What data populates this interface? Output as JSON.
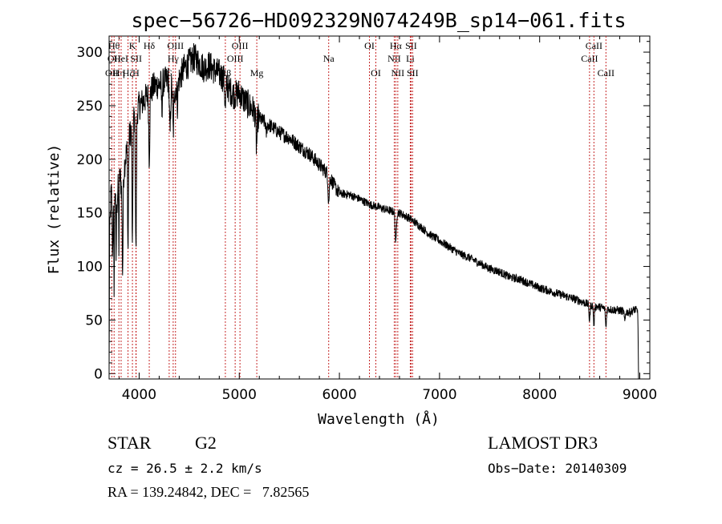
{
  "chart_data": {
    "type": "line",
    "title": "spec−56726−HD092329N074249B_sp14−061.fits",
    "xlabel": "Wavelength (Å)",
    "ylabel": "Flux (relative)",
    "xlim": [
      3700,
      9100
    ],
    "ylim": [
      -5,
      315
    ],
    "xticks": [
      4000,
      5000,
      6000,
      7000,
      8000,
      9000
    ],
    "yticks": [
      0,
      50,
      100,
      150,
      200,
      250,
      300
    ],
    "spectrum_anchors": [
      [
        3700,
        0
      ],
      [
        3705,
        125
      ],
      [
        3720,
        170
      ],
      [
        3740,
        150
      ],
      [
        3760,
        175
      ],
      [
        3780,
        160
      ],
      [
        3800,
        190
      ],
      [
        3830,
        170
      ],
      [
        3860,
        200
      ],
      [
        3900,
        220
      ],
      [
        3950,
        240
      ],
      [
        4000,
        250
      ],
      [
        4050,
        255
      ],
      [
        4100,
        262
      ],
      [
        4150,
        268
      ],
      [
        4200,
        270
      ],
      [
        4250,
        272
      ],
      [
        4300,
        275
      ],
      [
        4350,
        262
      ],
      [
        4400,
        275
      ],
      [
        4450,
        285
      ],
      [
        4500,
        290
      ],
      [
        4550,
        295
      ],
      [
        4600,
        290
      ],
      [
        4650,
        285
      ],
      [
        4700,
        288
      ],
      [
        4750,
        283
      ],
      [
        4800,
        280
      ],
      [
        4850,
        275
      ],
      [
        4900,
        265
      ],
      [
        4950,
        260
      ],
      [
        5000,
        262
      ],
      [
        5050,
        255
      ],
      [
        5100,
        250
      ],
      [
        5150,
        245
      ],
      [
        5200,
        238
      ],
      [
        5300,
        232
      ],
      [
        5400,
        225
      ],
      [
        5500,
        220
      ],
      [
        5600,
        212
      ],
      [
        5700,
        205
      ],
      [
        5800,
        195
      ],
      [
        5900,
        185
      ],
      [
        5950,
        175
      ],
      [
        6000,
        168
      ],
      [
        6100,
        167
      ],
      [
        6200,
        163
      ],
      [
        6300,
        158
      ],
      [
        6400,
        155
      ],
      [
        6500,
        152
      ],
      [
        6600,
        150
      ],
      [
        6700,
        145
      ],
      [
        6800,
        138
      ],
      [
        6900,
        130
      ],
      [
        7000,
        124
      ],
      [
        7100,
        118
      ],
      [
        7200,
        112
      ],
      [
        7300,
        108
      ],
      [
        7400,
        103
      ],
      [
        7500,
        98
      ],
      [
        7600,
        95
      ],
      [
        7700,
        90
      ],
      [
        7800,
        88
      ],
      [
        7900,
        84
      ],
      [
        8000,
        80
      ],
      [
        8100,
        77
      ],
      [
        8200,
        74
      ],
      [
        8300,
        71
      ],
      [
        8400,
        68
      ],
      [
        8500,
        64
      ],
      [
        8600,
        62
      ],
      [
        8700,
        60
      ],
      [
        8800,
        59
      ],
      [
        8900,
        57
      ],
      [
        8950,
        60
      ],
      [
        8980,
        58
      ],
      [
        8990,
        5
      ]
    ],
    "absorption_features": [
      [
        3734,
        45,
        3
      ],
      [
        3750,
        80,
        3
      ],
      [
        3770,
        60,
        3
      ],
      [
        3798,
        70,
        3
      ],
      [
        3835,
        80,
        4
      ],
      [
        3889,
        100,
        4
      ],
      [
        3933,
        120,
        4
      ],
      [
        3968,
        130,
        5
      ],
      [
        4101,
        60,
        5
      ],
      [
        4227,
        25,
        4
      ],
      [
        4308,
        50,
        6
      ],
      [
        4340,
        40,
        5
      ],
      [
        4383,
        20,
        4
      ],
      [
        4861,
        25,
        6
      ],
      [
        5172,
        30,
        6
      ],
      [
        5270,
        10,
        5
      ],
      [
        5893,
        25,
        6
      ],
      [
        6563,
        30,
        6
      ],
      [
        8498,
        15,
        5
      ],
      [
        8542,
        18,
        5
      ],
      [
        8662,
        18,
        5
      ],
      [
        8850,
        10,
        5
      ],
      [
        8990,
        50,
        3
      ]
    ],
    "noise_amplitude_blue": 14,
    "noise_amplitude_red": 4,
    "line_marks": [
      {
        "wl": 3727,
        "rows": [
          {
            "label": "OII",
            "row": 2
          }
        ]
      },
      {
        "wl": 3750,
        "rows": [
          {
            "label": "Hθ",
            "row": 0
          },
          {
            "label": "OII",
            "row": 1
          }
        ]
      },
      {
        "wl": 3798,
        "rows": [
          {
            "label": "Hη",
            "row": 2
          }
        ]
      },
      {
        "wl": 3820,
        "rows": [
          {
            "label": "HeI",
            "row": 1
          }
        ]
      },
      {
        "wl": 3889,
        "rows": [
          {
            "label": "Hζ",
            "row": 2
          }
        ]
      },
      {
        "wl": 3933,
        "rows": [
          {
            "label": "K",
            "row": 0
          }
        ]
      },
      {
        "wl": 3968,
        "rows": [
          {
            "label": "H",
            "row": 2
          }
        ]
      },
      {
        "wl": 3970,
        "rows": [
          {
            "label": "SII",
            "row": 1
          }
        ]
      },
      {
        "wl": 4101,
        "rows": [
          {
            "label": "Hδ",
            "row": 0
          }
        ]
      },
      {
        "wl": 4300,
        "rows": [
          {
            "label": "G",
            "row": 2
          }
        ]
      },
      {
        "wl": 4340,
        "rows": [
          {
            "label": "Hγ",
            "row": 1
          }
        ]
      },
      {
        "wl": 4363,
        "rows": [
          {
            "label": "OIII",
            "row": 0
          }
        ]
      },
      {
        "wl": 4861,
        "rows": [
          {
            "label": "Hβ",
            "row": 2
          }
        ]
      },
      {
        "wl": 4959,
        "rows": [
          {
            "label": "OIII",
            "row": 1
          }
        ]
      },
      {
        "wl": 5007,
        "rows": [
          {
            "label": "OIII",
            "row": 0
          }
        ]
      },
      {
        "wl": 5175,
        "rows": [
          {
            "label": "Mg",
            "row": 2
          }
        ]
      },
      {
        "wl": 5893,
        "rows": [
          {
            "label": "Na",
            "row": 1
          }
        ]
      },
      {
        "wl": 6300,
        "rows": [
          {
            "label": "OI",
            "row": 0
          }
        ]
      },
      {
        "wl": 6364,
        "rows": [
          {
            "label": "OI",
            "row": 2
          }
        ]
      },
      {
        "wl": 6548,
        "rows": [
          {
            "label": "NII",
            "row": 1
          }
        ]
      },
      {
        "wl": 6563,
        "rows": [
          {
            "label": "Hα",
            "row": 0
          }
        ]
      },
      {
        "wl": 6583,
        "rows": [
          {
            "label": "NII",
            "row": 2
          }
        ]
      },
      {
        "wl": 6708,
        "rows": [
          {
            "label": "Li",
            "row": 1
          }
        ]
      },
      {
        "wl": 6716,
        "rows": [
          {
            "label": "SII",
            "row": 0
          }
        ]
      },
      {
        "wl": 6731,
        "rows": [
          {
            "label": "SII",
            "row": 2
          }
        ]
      },
      {
        "wl": 8498,
        "rows": [
          {
            "label": "CaII",
            "row": 1
          }
        ]
      },
      {
        "wl": 8542,
        "rows": [
          {
            "label": "CaII",
            "row": 0
          }
        ]
      },
      {
        "wl": 8662,
        "rows": [
          {
            "label": "CaII",
            "row": 2
          }
        ]
      }
    ],
    "line_mark_color": "#c62828"
  },
  "footer": {
    "object_class": "STAR",
    "subclass": "G2",
    "survey": "LAMOST DR3",
    "redshift": "cz = 26.5 ± 2.2 km/s",
    "obs_date": "Obs−Date: 20140309",
    "coords": "RA = 139.24842, DEC =   7.82565"
  }
}
